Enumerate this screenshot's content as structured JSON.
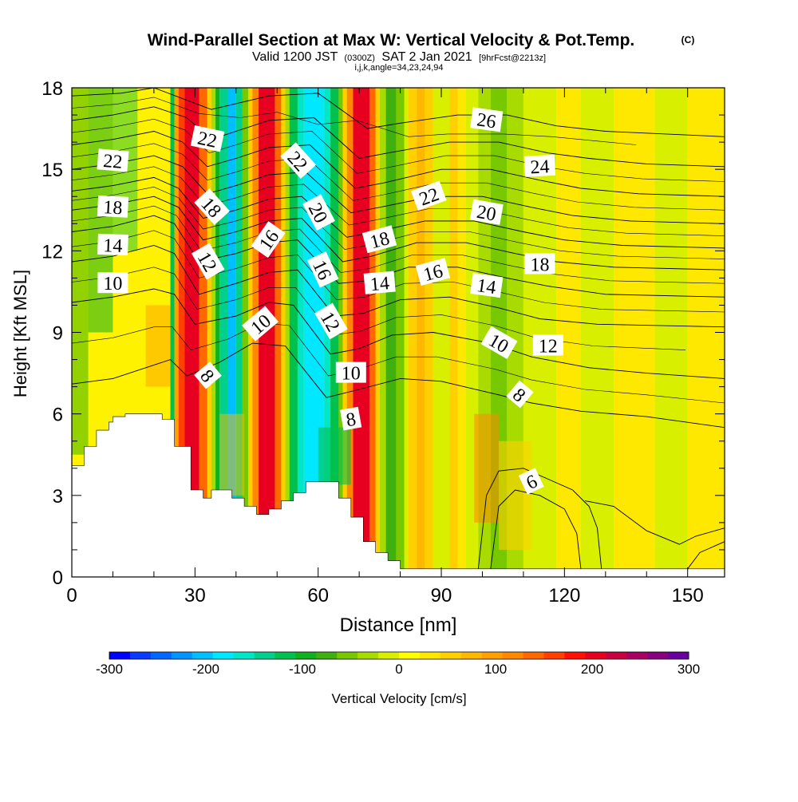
{
  "chart_data": {
    "type": "heatmap",
    "title": "Wind-Parallel Section at Max W: Vertical Velocity & Pot.Temp.",
    "title_mark": "(C)",
    "subtitle_parts": [
      "Valid 1200 JST",
      "(0300Z)",
      "SAT 2 Jan 2021",
      "[9hrFcst@2213z]"
    ],
    "subtitle_line2": "i,j,k,angle=34,23,24,94",
    "xlabel": "Distance [nm]",
    "ylabel": "Height [Kft MSL]",
    "xlim": [
      0,
      159
    ],
    "ylim": [
      0,
      18
    ],
    "x_ticks": [
      0,
      30,
      60,
      90,
      120,
      150
    ],
    "x_tick_labels": [
      "0",
      "30",
      "60",
      "90",
      "120",
      "150"
    ],
    "y_ticks": [
      0,
      3,
      6,
      9,
      12,
      15,
      18
    ],
    "y_tick_labels": [
      "0",
      "3",
      "6",
      "9",
      "12",
      "15",
      "18"
    ],
    "colorbar": {
      "label": "Vertical Velocity [cm/s]",
      "min": -300,
      "max": 300,
      "tick_values": [
        -300,
        -200,
        -100,
        0,
        100,
        200,
        300
      ],
      "tick_labels": [
        "-300",
        "-200",
        "-100",
        "0",
        "100",
        "200",
        "300"
      ],
      "colors": [
        "#0000ff",
        "#0a3cff",
        "#0068ff",
        "#0094ff",
        "#00bfff",
        "#00e8ff",
        "#00e6c8",
        "#00d08c",
        "#00c050",
        "#10b020",
        "#40b010",
        "#78c800",
        "#a8dc00",
        "#d8f000",
        "#ffff00",
        "#ffe800",
        "#ffd000",
        "#ffb800",
        "#ffa000",
        "#ff8800",
        "#ff6800",
        "#ff4000",
        "#ff1000",
        "#e80020",
        "#c80040",
        "#a80060",
        "#880080",
        "#6800a0"
      ]
    },
    "terrain": {
      "x": [
        0,
        3,
        3,
        6,
        6,
        9,
        9,
        10,
        10,
        12,
        12,
        13,
        13,
        16,
        16,
        22,
        22,
        25,
        25,
        29,
        29,
        32,
        32,
        34,
        34,
        39,
        39,
        42,
        42,
        45,
        45,
        48,
        48,
        51,
        51,
        54,
        54,
        57,
        57,
        65,
        65,
        68,
        68,
        71,
        71,
        74,
        74,
        77,
        77,
        80,
        80,
        86,
        86,
        159
      ],
      "y": [
        4.1,
        4.1,
        4.8,
        4.8,
        5.4,
        5.4,
        5.7,
        5.7,
        5.9,
        5.9,
        5.9,
        5.9,
        6.0,
        6.0,
        6.0,
        6.0,
        5.8,
        5.8,
        4.8,
        4.8,
        3.2,
        3.2,
        2.9,
        2.9,
        3.2,
        3.2,
        2.9,
        2.9,
        2.6,
        2.6,
        2.3,
        2.3,
        2.5,
        2.5,
        2.8,
        2.8,
        3.1,
        3.1,
        3.5,
        3.5,
        2.9,
        2.9,
        2.2,
        2.2,
        1.3,
        1.3,
        0.9,
        0.9,
        0.6,
        0.6,
        0.3,
        0.3,
        0.3,
        0.3
      ]
    },
    "theta_contours": [
      {
        "label": "8",
        "label_x": 32,
        "label_y": 7.4,
        "pts": [
          [
            0,
            7.1
          ],
          [
            10,
            7.3
          ],
          [
            20,
            7.8
          ],
          [
            24,
            8.0
          ],
          [
            28,
            7.4
          ],
          [
            36,
            7.9
          ],
          [
            44,
            8.6
          ],
          [
            52,
            8.5
          ],
          [
            62,
            6.6
          ],
          [
            70,
            6.9
          ],
          [
            80,
            7.3
          ],
          [
            90,
            7.2
          ],
          [
            104,
            6.7
          ],
          [
            112,
            6.4
          ],
          [
            124,
            6.1
          ],
          [
            140,
            5.9
          ],
          [
            159,
            5.5
          ]
        ]
      },
      {
        "label": "10",
        "label_x": 46,
        "label_y": 9.3,
        "pts": [
          [
            0,
            10.1
          ],
          [
            10,
            10.3
          ],
          [
            20,
            10.6
          ],
          [
            25,
            10.4
          ],
          [
            30,
            9.3
          ],
          [
            40,
            9.6
          ],
          [
            48,
            10.1
          ],
          [
            54,
            10.0
          ],
          [
            63,
            8.2
          ],
          [
            70,
            8.4
          ],
          [
            78,
            8.9
          ],
          [
            88,
            9.0
          ],
          [
            102,
            8.6
          ],
          [
            112,
            8.1
          ],
          [
            126,
            7.7
          ],
          [
            140,
            7.5
          ],
          [
            159,
            7.3
          ]
        ]
      },
      {
        "label": "12",
        "label_x": 33,
        "label_y": 11.6,
        "pts": [
          [
            0,
            11.6
          ],
          [
            10,
            11.8
          ],
          [
            20,
            12.2
          ],
          [
            25,
            11.9
          ],
          [
            31,
            10.4
          ],
          [
            40,
            10.8
          ],
          [
            48,
            11.2
          ],
          [
            55,
            11.3
          ],
          [
            64,
            9.6
          ],
          [
            71,
            9.7
          ],
          [
            80,
            10.2
          ],
          [
            92,
            10.3
          ],
          [
            104,
            9.9
          ],
          [
            114,
            9.5
          ],
          [
            128,
            9.3
          ],
          [
            159,
            9.2
          ]
        ]
      },
      {
        "label": "14",
        "label_x": 10,
        "label_y": 12.2,
        "pts": [
          [
            0,
            12.7
          ],
          [
            10,
            12.9
          ],
          [
            20,
            13.3
          ],
          [
            25,
            13.0
          ],
          [
            31,
            11.6
          ],
          [
            40,
            11.9
          ],
          [
            48,
            12.3
          ],
          [
            55,
            12.4
          ],
          [
            65,
            10.8
          ],
          [
            72,
            10.9
          ],
          [
            82,
            11.4
          ],
          [
            94,
            11.4
          ],
          [
            106,
            11.0
          ],
          [
            116,
            10.7
          ],
          [
            130,
            10.4
          ],
          [
            159,
            10.3
          ]
        ]
      },
      {
        "label": "16",
        "label_x": 47,
        "label_y": 12.4,
        "pts": [
          [
            0,
            13.5
          ],
          [
            10,
            13.7
          ],
          [
            20,
            14.0
          ],
          [
            26,
            13.6
          ],
          [
            32,
            12.4
          ],
          [
            40,
            12.7
          ],
          [
            48,
            13.1
          ],
          [
            56,
            13.2
          ],
          [
            66,
            11.6
          ],
          [
            73,
            11.8
          ],
          [
            84,
            12.3
          ],
          [
            96,
            12.3
          ],
          [
            108,
            11.9
          ],
          [
            118,
            11.6
          ],
          [
            132,
            11.4
          ],
          [
            159,
            11.3
          ]
        ]
      },
      {
        "label": "18",
        "label_x": 10,
        "label_y": 13.6,
        "pts": [
          [
            0,
            14.2
          ],
          [
            10,
            14.4
          ],
          [
            20,
            14.7
          ],
          [
            26,
            14.3
          ],
          [
            32,
            13.2
          ],
          [
            40,
            13.5
          ],
          [
            48,
            13.9
          ],
          [
            56,
            14.0
          ],
          [
            67,
            12.5
          ],
          [
            74,
            12.7
          ],
          [
            86,
            13.1
          ],
          [
            98,
            13.1
          ],
          [
            110,
            12.7
          ],
          [
            120,
            12.4
          ],
          [
            134,
            12.2
          ],
          [
            159,
            12.1
          ]
        ]
      },
      {
        "label": "20",
        "label_x": 60,
        "label_y": 13.4,
        "pts": [
          [
            0,
            15.0
          ],
          [
            10,
            15.2
          ],
          [
            20,
            15.5
          ],
          [
            27,
            15.1
          ],
          [
            33,
            14.1
          ],
          [
            40,
            14.4
          ],
          [
            48,
            14.8
          ],
          [
            57,
            14.9
          ],
          [
            68,
            13.4
          ],
          [
            75,
            13.6
          ],
          [
            88,
            14.0
          ],
          [
            100,
            14.0
          ],
          [
            112,
            13.6
          ],
          [
            122,
            13.3
          ],
          [
            136,
            13.1
          ],
          [
            159,
            13.0
          ]
        ]
      },
      {
        "label": "22",
        "label_x": 10,
        "label_y": 15.3,
        "pts": [
          [
            0,
            15.9
          ],
          [
            10,
            16.1
          ],
          [
            20,
            16.4
          ],
          [
            27,
            16.0
          ],
          [
            33,
            15.1
          ],
          [
            40,
            15.4
          ],
          [
            48,
            15.8
          ],
          [
            58,
            15.9
          ],
          [
            69,
            14.3
          ],
          [
            76,
            14.5
          ],
          [
            90,
            15.0
          ],
          [
            102,
            15.0
          ],
          [
            114,
            14.6
          ],
          [
            124,
            14.3
          ],
          [
            138,
            14.1
          ],
          [
            159,
            14.0
          ]
        ]
      },
      {
        "label": "24",
        "label_x": 114,
        "label_y": 15.1,
        "pts": [
          [
            0,
            16.8
          ],
          [
            10,
            17.0
          ],
          [
            20,
            17.3
          ],
          [
            28,
            16.9
          ],
          [
            34,
            16.1
          ],
          [
            40,
            16.4
          ],
          [
            48,
            16.8
          ],
          [
            59,
            16.9
          ],
          [
            70,
            15.4
          ],
          [
            77,
            15.6
          ],
          [
            92,
            16.0
          ],
          [
            104,
            16.0
          ],
          [
            116,
            15.6
          ],
          [
            126,
            15.4
          ],
          [
            140,
            15.2
          ],
          [
            159,
            15.1
          ]
        ]
      },
      {
        "label": "26",
        "label_x": 101,
        "label_y": 16.8,
        "pts": [
          [
            0,
            17.7
          ],
          [
            12,
            17.8
          ],
          [
            20,
            18.0
          ],
          [
            34,
            17.2
          ],
          [
            48,
            17.7
          ],
          [
            60,
            17.8
          ],
          [
            72,
            16.5
          ],
          [
            80,
            16.7
          ],
          [
            94,
            17.0
          ],
          [
            106,
            17.0
          ],
          [
            118,
            16.6
          ],
          [
            130,
            16.4
          ],
          [
            159,
            16.2
          ]
        ]
      }
    ],
    "contour_labels": [
      {
        "text": "22",
        "x": 10,
        "y": 15.3,
        "rot": 5
      },
      {
        "text": "18",
        "x": 10,
        "y": 13.6,
        "rot": 3
      },
      {
        "text": "14",
        "x": 10,
        "y": 12.2,
        "rot": 2
      },
      {
        "text": "10",
        "x": 10,
        "y": 10.8,
        "rot": 0
      },
      {
        "text": "22",
        "x": 33,
        "y": 16.1,
        "rot": 12
      },
      {
        "text": "18",
        "x": 34,
        "y": 13.6,
        "rot": 48
      },
      {
        "text": "12",
        "x": 33,
        "y": 11.6,
        "rot": 60
      },
      {
        "text": "8",
        "x": 33,
        "y": 7.4,
        "rot": 50
      },
      {
        "text": "16",
        "x": 48,
        "y": 12.4,
        "rot": -55
      },
      {
        "text": "10",
        "x": 46,
        "y": 9.3,
        "rot": -40
      },
      {
        "text": "22",
        "x": 55,
        "y": 15.3,
        "rot": 48
      },
      {
        "text": "20",
        "x": 60,
        "y": 13.4,
        "rot": 62
      },
      {
        "text": "16",
        "x": 61,
        "y": 11.3,
        "rot": 65
      },
      {
        "text": "12",
        "x": 63,
        "y": 9.4,
        "rot": 60
      },
      {
        "text": "10",
        "x": 68,
        "y": 7.5,
        "rot": 0
      },
      {
        "text": "8",
        "x": 68,
        "y": 5.8,
        "rot": -10
      },
      {
        "text": "18",
        "x": 75,
        "y": 12.4,
        "rot": -15
      },
      {
        "text": "14",
        "x": 75,
        "y": 10.8,
        "rot": -5
      },
      {
        "text": "22",
        "x": 87,
        "y": 14.0,
        "rot": -20
      },
      {
        "text": "16",
        "x": 88,
        "y": 11.2,
        "rot": -15
      },
      {
        "text": "26",
        "x": 101,
        "y": 16.8,
        "rot": 8
      },
      {
        "text": "24",
        "x": 114,
        "y": 15.1,
        "rot": -3
      },
      {
        "text": "20",
        "x": 101,
        "y": 13.4,
        "rot": 10
      },
      {
        "text": "18",
        "x": 114,
        "y": 11.5,
        "rot": 0
      },
      {
        "text": "14",
        "x": 101,
        "y": 10.7,
        "rot": 8
      },
      {
        "text": "10",
        "x": 104,
        "y": 8.6,
        "rot": 30
      },
      {
        "text": "12",
        "x": 116,
        "y": 8.5,
        "rot": 0
      },
      {
        "text": "8",
        "x": 109,
        "y": 6.7,
        "rot": 40
      },
      {
        "text": "6",
        "x": 112,
        "y": 3.5,
        "rot": -25
      }
    ]
  }
}
